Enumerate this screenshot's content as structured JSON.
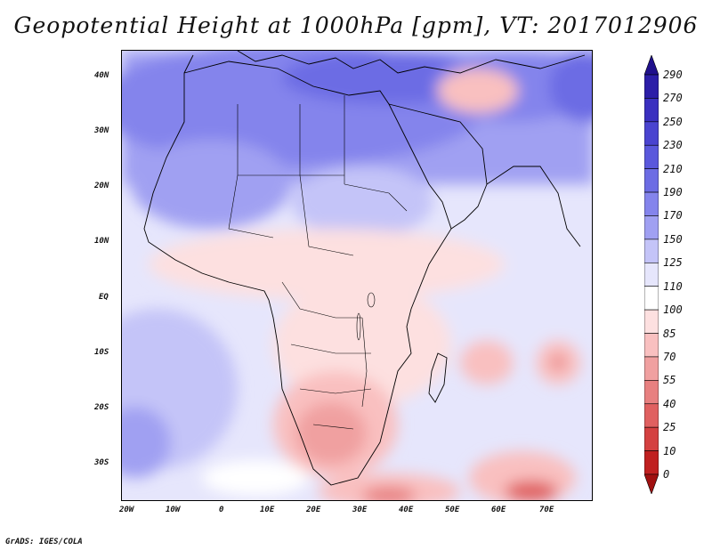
{
  "title": "Geopotential Height at 1000hPa [gpm], VT: 2017012906",
  "credit": "GrADS: IGES/COLA",
  "map": {
    "region": "Africa",
    "lat_labels": [
      "40N",
      "30N",
      "20N",
      "10N",
      "EQ",
      "10S",
      "20S",
      "30S"
    ],
    "lon_labels": [
      "20W",
      "10W",
      "0",
      "10E",
      "20E",
      "30E",
      "40E",
      "50E",
      "60E",
      "70E"
    ],
    "lon_range": [
      -22,
      80
    ],
    "lat_range": [
      -36,
      45
    ]
  },
  "colorbar": {
    "levels": [
      "290",
      "270",
      "250",
      "230",
      "210",
      "190",
      "170",
      "150",
      "125",
      "110",
      "100",
      "85",
      "70",
      "55",
      "40",
      "25",
      "10",
      "0"
    ],
    "colors": [
      "#20108c",
      "#2c1ea8",
      "#3a30c0",
      "#4a44d0",
      "#5a58dc",
      "#6c6ce4",
      "#8484ec",
      "#a0a0f2",
      "#c4c4f8",
      "#e6e6fc",
      "#ffffff",
      "#fde0e0",
      "#f9c0c0",
      "#f0a0a0",
      "#e88080",
      "#e06060",
      "#d44040",
      "#c02020",
      "#a01010"
    ]
  }
}
